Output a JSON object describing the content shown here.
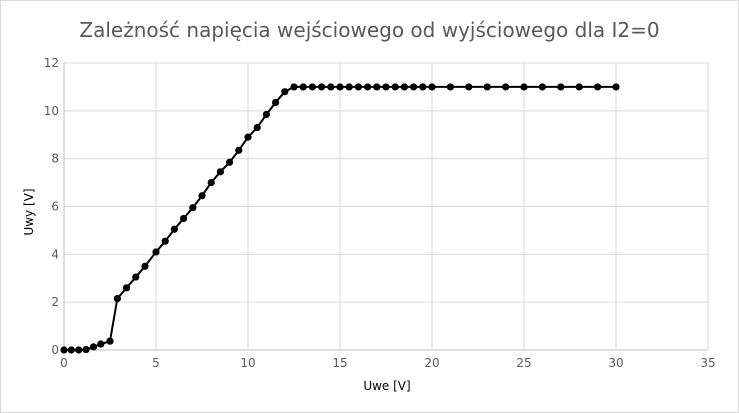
{
  "chart_data": {
    "type": "line",
    "title": "Zależność napięcia wejściowego od wyjściowego dla I2=0",
    "xlabel": "Uwe [V]",
    "ylabel": "Uwy [V]",
    "xlim": [
      0,
      35
    ],
    "ylim": [
      0,
      12
    ],
    "xticks": [
      "0",
      "5",
      "10",
      "15",
      "20",
      "25",
      "30",
      "35"
    ],
    "yticks": [
      "0",
      "2",
      "4",
      "6",
      "8",
      "10",
      "12"
    ],
    "grid": true,
    "legend": "none",
    "line_color": "#000000",
    "series": [
      {
        "x": [
          0,
          0.4,
          0.8,
          1.2,
          1.6,
          2.0,
          2.5,
          2.9,
          3.4,
          3.9,
          4.4,
          5.0,
          5.5,
          6.0,
          6.5,
          7.0,
          7.5,
          8.0,
          8.5,
          9.0,
          9.5,
          10.0,
          10.5,
          11.0,
          11.5,
          12.0,
          12.5,
          13.0,
          13.5,
          14.0,
          14.5,
          15.0,
          15.5,
          16.0,
          16.5,
          17.0,
          17.5,
          18.0,
          18.5,
          19.0,
          19.5,
          20.0,
          21.0,
          22.0,
          23.0,
          24.0,
          25.0,
          26.0,
          27.0,
          28.0,
          29.0,
          30.0
        ],
        "values": [
          0.0,
          0.0,
          0.0,
          0.02,
          0.13,
          0.25,
          0.37,
          2.15,
          2.6,
          3.05,
          3.5,
          4.1,
          4.55,
          5.05,
          5.5,
          5.95,
          6.45,
          7.0,
          7.45,
          7.85,
          8.35,
          8.9,
          9.3,
          9.85,
          10.35,
          10.8,
          11.0,
          11.0,
          11.0,
          11.0,
          11.0,
          11.0,
          11.0,
          11.0,
          11.0,
          11.0,
          11.0,
          11.0,
          11.0,
          11.0,
          11.0,
          11.0,
          11.0,
          11.0,
          11.0,
          11.0,
          11.0,
          11.0,
          11.0,
          11.0,
          11.0,
          11.0
        ]
      }
    ]
  }
}
